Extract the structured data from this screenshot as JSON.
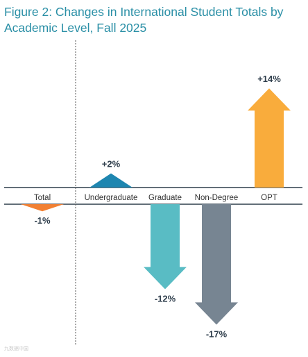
{
  "chart_data": {
    "type": "bar",
    "title": "Figure 2: Changes in International Student Totals by Academic Level, Fall 2025",
    "categories": [
      "Total",
      "Undergraduate",
      "Graduate",
      "Non-Degree",
      "OPT"
    ],
    "series": [
      {
        "values": [
          -1,
          2,
          -12,
          -17,
          14
        ]
      }
    ],
    "data_labels": [
      "-1%",
      "+2%",
      "-12%",
      "-17%",
      "+14%"
    ],
    "colors": [
      "#f28033",
      "#1e86b0",
      "#59bcc4",
      "#778592",
      "#f9ac3c"
    ],
    "grid": false
  },
  "watermark": "九数据中国"
}
